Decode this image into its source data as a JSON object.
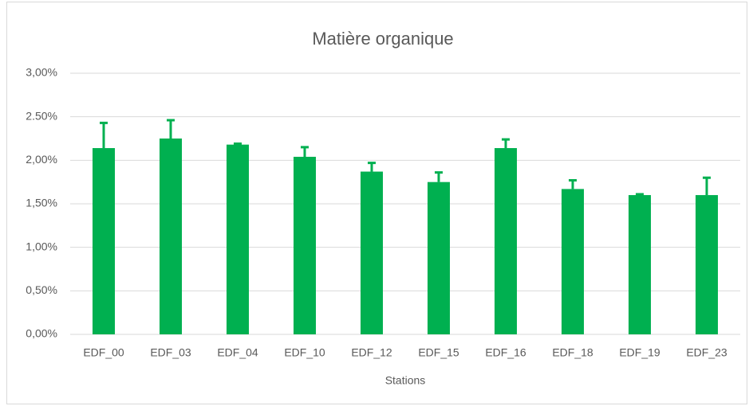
{
  "chart_data": {
    "type": "bar",
    "title": "Matière organique",
    "x_label": "Stations",
    "categories": [
      "EDF_00",
      "EDF_03",
      "EDF_04",
      "EDF_10",
      "EDF_12",
      "EDF_15",
      "EDF_16",
      "EDF_18",
      "EDF_19",
      "EDF_23"
    ],
    "values": [
      2.14,
      2.25,
      2.18,
      2.04,
      1.87,
      1.75,
      2.14,
      1.67,
      1.6,
      1.6
    ],
    "errors": [
      0.29,
      0.21,
      0.01,
      0.11,
      0.1,
      0.11,
      0.1,
      0.1,
      0.01,
      0.2
    ],
    "color": "#00b050",
    "ylim": [
      0,
      3
    ],
    "yticks": [
      {
        "value": 0,
        "label": "0,00%"
      },
      {
        "value": 0.5,
        "label": "0,50%"
      },
      {
        "value": 1,
        "label": "1,00%"
      },
      {
        "value": 1.5,
        "label": "1,50%"
      },
      {
        "value": 2,
        "label": "2,00%"
      },
      {
        "value": 2.5,
        "label": "2.50%"
      },
      {
        "value": 3,
        "label": "3,00%"
      }
    ],
    "grid": true
  }
}
